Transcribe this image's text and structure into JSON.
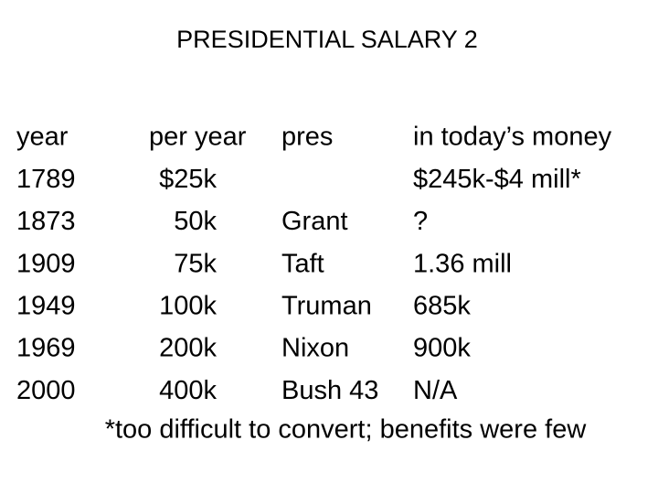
{
  "title": "PRESIDENTIAL SALARY 2",
  "table": {
    "header": [
      "year",
      "per year",
      "pres",
      "in today’s money"
    ],
    "rows": [
      [
        "1789",
        "$25k",
        null,
        "$245k-$4 mill*"
      ],
      [
        "1873",
        "50k",
        "Grant",
        "?"
      ],
      [
        "1909",
        "75k",
        "Taft",
        "1.36 mill"
      ],
      [
        "1949",
        "100k",
        "Truman",
        "685k"
      ],
      [
        "1969",
        "200k",
        "Nixon",
        "900k"
      ],
      [
        "2000",
        "400k",
        "Bush 43",
        "N/A"
      ]
    ]
  },
  "footnote": "*too difficult to convert; benefits were few"
}
